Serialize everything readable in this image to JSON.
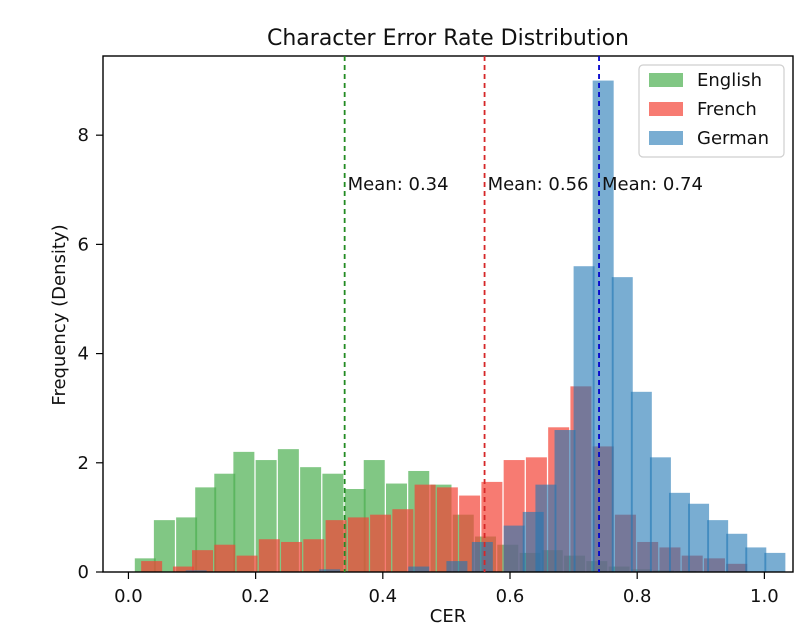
{
  "chart_data": {
    "type": "histogram",
    "title": "Character Error Rate Distribution",
    "xlabel": "CER",
    "ylabel": "Frequency (Density)",
    "xlim": [
      -0.04,
      1.045
    ],
    "ylim": [
      0,
      9.45
    ],
    "xticks": [
      0.0,
      0.2,
      0.4,
      0.6,
      0.8,
      1.0
    ],
    "xtick_labels": [
      "0.0",
      "0.2",
      "0.4",
      "0.6",
      "0.8",
      "1.0"
    ],
    "yticks": [
      0,
      2,
      4,
      6,
      8
    ],
    "ytick_labels": [
      "0",
      "2",
      "4",
      "6",
      "8"
    ],
    "grid": false,
    "legend_position": "top-right",
    "series": [
      {
        "name": "English",
        "color": "#4caf50",
        "opacity": 0.7,
        "bins": [
          [
            0.01,
            0.25
          ],
          [
            0.04,
            0.95
          ],
          [
            0.075,
            1.0
          ],
          [
            0.105,
            1.55
          ],
          [
            0.135,
            1.8
          ],
          [
            0.165,
            2.2
          ],
          [
            0.2,
            2.05
          ],
          [
            0.235,
            2.25
          ],
          [
            0.27,
            1.92
          ],
          [
            0.305,
            1.8
          ],
          [
            0.34,
            1.52
          ],
          [
            0.37,
            2.05
          ],
          [
            0.405,
            1.62
          ],
          [
            0.44,
            1.85
          ],
          [
            0.475,
            1.6
          ],
          [
            0.51,
            1.05
          ],
          [
            0.545,
            0.65
          ],
          [
            0.58,
            0.5
          ],
          [
            0.615,
            0.35
          ],
          [
            0.65,
            0.4
          ],
          [
            0.685,
            0.3
          ],
          [
            0.72,
            0.2
          ],
          [
            0.755,
            0.1
          ],
          [
            0.79,
            0.05
          ],
          [
            0.825,
            0.03
          ],
          [
            0.86,
            0.02
          ]
        ]
      },
      {
        "name": "French",
        "color": "#f44336",
        "opacity": 0.7,
        "bins": [
          [
            0.02,
            0.2
          ],
          [
            0.07,
            0.1
          ],
          [
            0.1,
            0.4
          ],
          [
            0.135,
            0.5
          ],
          [
            0.17,
            0.3
          ],
          [
            0.205,
            0.6
          ],
          [
            0.24,
            0.55
          ],
          [
            0.275,
            0.6
          ],
          [
            0.31,
            0.95
          ],
          [
            0.345,
            1.0
          ],
          [
            0.38,
            1.05
          ],
          [
            0.415,
            1.15
          ],
          [
            0.45,
            1.6
          ],
          [
            0.485,
            1.55
          ],
          [
            0.52,
            1.4
          ],
          [
            0.555,
            1.65
          ],
          [
            0.59,
            2.05
          ],
          [
            0.625,
            2.1
          ],
          [
            0.66,
            2.65
          ],
          [
            0.695,
            3.4
          ],
          [
            0.73,
            2.3
          ],
          [
            0.765,
            1.05
          ],
          [
            0.8,
            0.55
          ],
          [
            0.835,
            0.45
          ],
          [
            0.87,
            0.3
          ],
          [
            0.905,
            0.25
          ],
          [
            0.94,
            0.15
          ]
        ]
      },
      {
        "name": "German",
        "color": "#1f77b4",
        "opacity": 0.6,
        "bins": [
          [
            0.09,
            0.03
          ],
          [
            0.3,
            0.05
          ],
          [
            0.44,
            0.1
          ],
          [
            0.5,
            0.2
          ],
          [
            0.54,
            0.55
          ],
          [
            0.59,
            0.85
          ],
          [
            0.62,
            1.1
          ],
          [
            0.64,
            1.6
          ],
          [
            0.67,
            2.6
          ],
          [
            0.7,
            5.6
          ],
          [
            0.73,
            9.0
          ],
          [
            0.76,
            5.4
          ],
          [
            0.79,
            3.3
          ],
          [
            0.82,
            2.1
          ],
          [
            0.85,
            1.45
          ],
          [
            0.88,
            1.25
          ],
          [
            0.91,
            0.95
          ],
          [
            0.94,
            0.7
          ],
          [
            0.97,
            0.45
          ],
          [
            1.0,
            0.35
          ]
        ]
      }
    ],
    "mean_lines": [
      {
        "value": 0.34,
        "label": "Mean: 0.34",
        "color": "#228b22"
      },
      {
        "value": 0.56,
        "label": "Mean: 0.56",
        "color": "#d62728"
      },
      {
        "value": 0.74,
        "label": "Mean: 0.74",
        "color": "#0000cc"
      }
    ]
  }
}
